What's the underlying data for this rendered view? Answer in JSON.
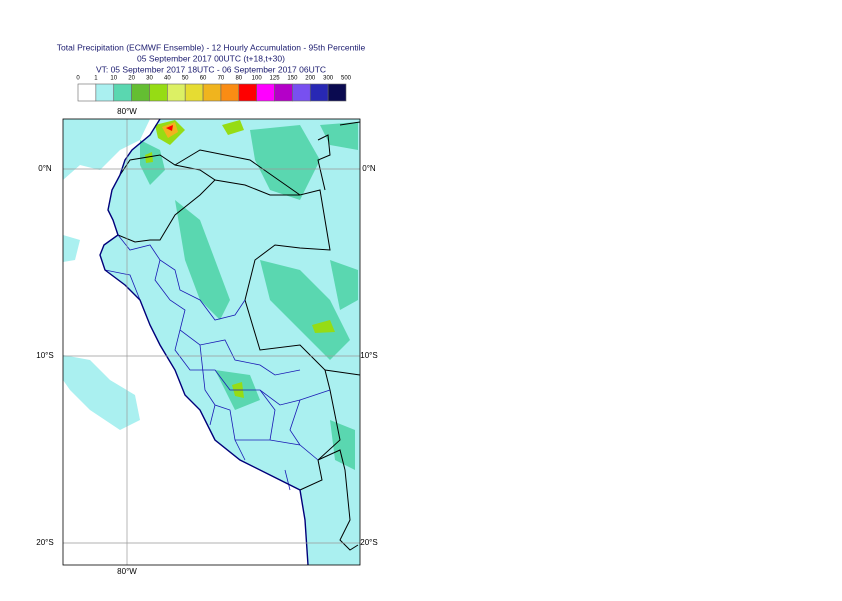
{
  "header": {
    "lines": [
      "Total Precipitation (ECMWF Ensemble) - 12 Hourly Accumulation - 95th Percentile",
      "05 September 2017 00UTC (t+18,t+30)",
      "VT: 05 September 2017 18UTC - 06 September 2017 06UTC"
    ]
  },
  "legend": {
    "thresholds": [
      0,
      1,
      10,
      20,
      30,
      40,
      50,
      60,
      70,
      80,
      100,
      125,
      150,
      200,
      300,
      500
    ],
    "colors": [
      "#ffffff",
      "#aaf0f0",
      "#5ad7b0",
      "#64be32",
      "#96dc14",
      "#dcf064",
      "#e6dc32",
      "#f0b41e",
      "#fa8c14",
      "#ff0000",
      "#ff00ff",
      "#b400c8",
      "#7850f0",
      "#2828b4",
      "#0a0a50"
    ]
  },
  "map": {
    "lat_labels": [
      "0°N",
      "10°S",
      "20°S"
    ],
    "lon_label": "80°W"
  }
}
